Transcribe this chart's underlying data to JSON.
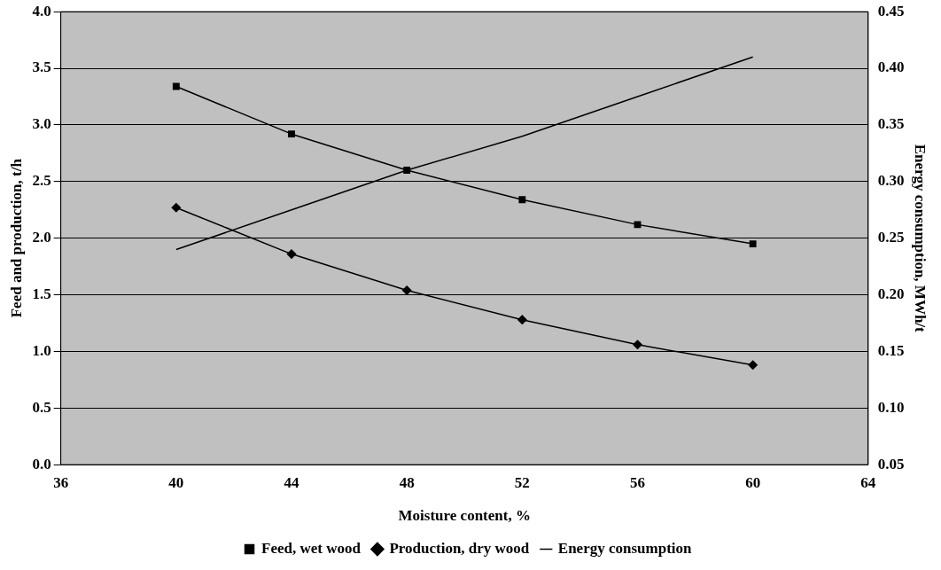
{
  "chart_data": {
    "type": "line",
    "xlabel": "Moisture content, %",
    "ylabel": "Feed and production, t/h",
    "y2label": "Energy consumption, MWh/t",
    "x": [
      40,
      44,
      48,
      52,
      56,
      60
    ],
    "series": [
      {
        "name": "Feed, wet wood",
        "color": "#000000",
        "marker": "square",
        "values": [
          3.34,
          2.92,
          2.6,
          2.34,
          2.12,
          1.95
        ]
      },
      {
        "name": "Production, dry wood",
        "color": "#000000",
        "marker": "diamond",
        "values": [
          2.27,
          1.86,
          1.54,
          1.28,
          1.06,
          0.88
        ]
      },
      {
        "name": "Energy consumption",
        "color": "#000000",
        "marker": "none",
        "axis": "y2",
        "values": [
          0.24,
          0.275,
          0.31,
          0.34,
          0.375,
          0.41
        ]
      }
    ],
    "xlim": [
      36,
      64
    ],
    "xticks": [
      36,
      40,
      44,
      48,
      52,
      56,
      60,
      64
    ],
    "ylim": [
      0,
      4
    ],
    "yticks": [
      {
        "value": 0,
        "label": "0.0"
      },
      0.5,
      {
        "value": 1,
        "label": "1.0"
      },
      1.5,
      {
        "value": 2,
        "label": "2.0"
      },
      2.5,
      {
        "value": 3,
        "label": "3.0"
      },
      3.5,
      {
        "value": 4,
        "label": "4.0"
      }
    ],
    "y2lim": [
      0.05,
      0.45
    ],
    "y2ticks": [
      0.05,
      {
        "value": 0.1,
        "label": "0.10"
      },
      0.15,
      {
        "value": 0.2,
        "label": "0.20"
      },
      0.25,
      {
        "value": 0.3,
        "label": "0.30"
      },
      0.35,
      {
        "value": 0.4,
        "label": "0.40"
      },
      0.45
    ],
    "grid": "y",
    "legend": "bottom",
    "line_style": "solid"
  }
}
